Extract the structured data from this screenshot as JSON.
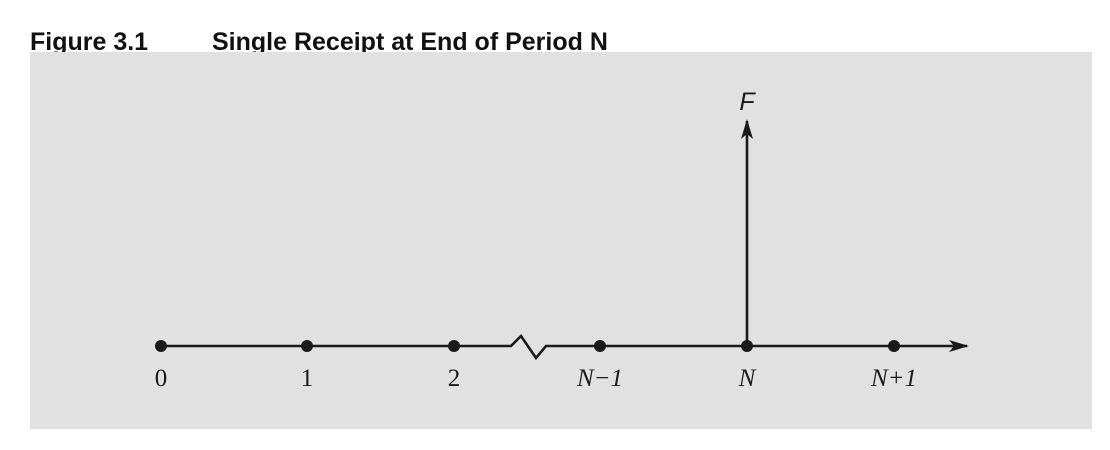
{
  "figure": {
    "number": "Figure 3.1",
    "title": "Single Receipt at End of Period N"
  },
  "timeline": {
    "points": [
      {
        "label": "0",
        "italic": false
      },
      {
        "label": "1",
        "italic": false
      },
      {
        "label": "2",
        "italic": false
      },
      {
        "label": "N−1",
        "italic": true
      },
      {
        "label": "N",
        "italic": true
      },
      {
        "label": "N+1",
        "italic": true
      }
    ],
    "break_between": [
      2,
      3
    ],
    "cash_flow": {
      "label": "F",
      "at_point": 4,
      "direction": "up"
    }
  },
  "colors": {
    "panel": "#e1e1e1",
    "line": "#1a1a1a"
  }
}
